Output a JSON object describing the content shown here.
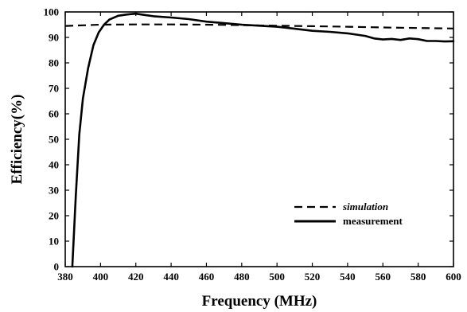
{
  "chart_data": {
    "type": "line",
    "xlabel": "Frequency (MHz)",
    "ylabel": "Efficiency(%)",
    "xlim": [
      380,
      600
    ],
    "ylim": [
      0,
      100
    ],
    "x_ticks": [
      380,
      400,
      420,
      440,
      460,
      480,
      500,
      520,
      540,
      560,
      580,
      600
    ],
    "y_ticks": [
      0,
      10,
      20,
      30,
      40,
      50,
      60,
      70,
      80,
      90,
      100
    ],
    "grid": false,
    "legend": "bottom-right",
    "series": [
      {
        "name": "simulation",
        "style": "dashed",
        "color": "#000000",
        "x": [
          380,
          400,
          420,
          440,
          460,
          480,
          500,
          520,
          540,
          560,
          580,
          600
        ],
        "y": [
          94.5,
          95,
          95.1,
          95.1,
          95,
          94.8,
          94.6,
          94.4,
          94.2,
          93.9,
          93.7,
          93.5
        ]
      },
      {
        "name": "measurement",
        "style": "solid",
        "color": "#000000",
        "x": [
          384,
          386,
          388,
          390,
          393,
          396,
          399,
          402,
          405,
          410,
          415,
          420,
          425,
          430,
          440,
          450,
          460,
          470,
          480,
          490,
          500,
          510,
          520,
          530,
          540,
          550,
          555,
          560,
          565,
          570,
          575,
          580,
          585,
          590,
          595,
          600
        ],
        "y": [
          0,
          28,
          52,
          66,
          78,
          87,
          92,
          95,
          97,
          98.5,
          99,
          99.3,
          98.8,
          98.3,
          97.8,
          97.2,
          96.2,
          95.6,
          95,
          94.6,
          94.2,
          93.4,
          92.6,
          92.2,
          91.6,
          90.6,
          89.6,
          89.2,
          89.4,
          89.0,
          89.6,
          89.3,
          88.6,
          88.6,
          88.4,
          88.5
        ]
      }
    ]
  }
}
